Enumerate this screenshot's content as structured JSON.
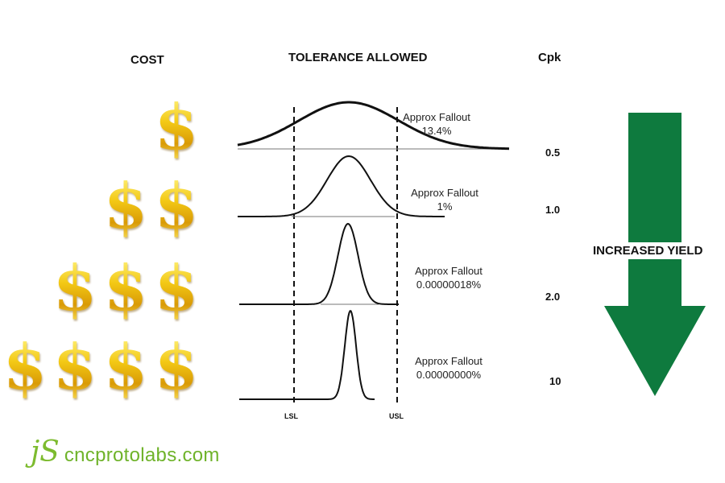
{
  "headers": {
    "cost": "COST",
    "tolerance": "TOLERANCE ALLOWED",
    "cpk": "Cpk"
  },
  "dollar_symbol": "$",
  "dollar_rows": [
    1,
    2,
    3,
    4
  ],
  "distributions": [
    {
      "fallout_label": "Approx Fallout",
      "fallout_value": "13.4%",
      "cpk": "0.5"
    },
    {
      "fallout_label": "Approx Fallout",
      "fallout_value": "1%",
      "cpk": "1.0"
    },
    {
      "fallout_label": "Approx Fallout",
      "fallout_value": "0.00000018%",
      "cpk": "2.0"
    },
    {
      "fallout_label": "Approx Fallout",
      "fallout_value": "0.00000000%",
      "cpk": "10"
    }
  ],
  "limits": {
    "lsl": "LSL",
    "usl": "USL"
  },
  "arrow": {
    "label": "INCREASED YIELD",
    "color": "#0e7a3e"
  },
  "dollar_color": "#f2c20f",
  "brand": {
    "mark": "jS",
    "text": "cncprotolabs.com",
    "color": "#6fb32a"
  }
}
